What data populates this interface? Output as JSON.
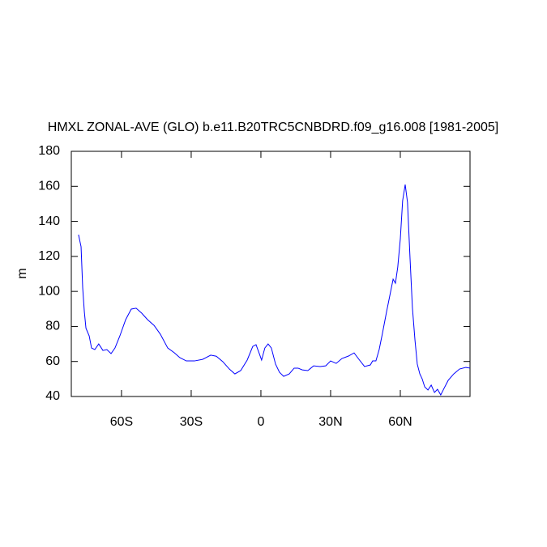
{
  "chart_data": {
    "type": "line",
    "title": "HMXL ZONAL-AVE (GLO) b.e11.B20TRC5CNBDRD.f09_g16.008 [1981-2005]",
    "y_label": "m",
    "x": [
      -78.5,
      -77.4,
      -76.7,
      -76,
      -75.3,
      -73.9,
      -72.9,
      -71.5,
      -69.8,
      -68,
      -66.3,
      -64.5,
      -62.8,
      -60.7,
      -58.2,
      -55.8,
      -53.7,
      -51.3,
      -48.8,
      -46,
      -43.3,
      -40.1,
      -37.3,
      -34.9,
      -32.1,
      -28.6,
      -25.1,
      -21.6,
      -19.2,
      -16.4,
      -13.6,
      -11.2,
      -8.7,
      -5.9,
      -3.5,
      -2.1,
      -0.7,
      0.3,
      1.7,
      3.1,
      4.5,
      6.3,
      8,
      9.8,
      12.2,
      14.3,
      16,
      17.8,
      20.2,
      22.7,
      25.5,
      27.9,
      30,
      32.4,
      34.9,
      37.7,
      40.1,
      42.2,
      44.6,
      47.1,
      48.1,
      49.5,
      50.9,
      52.3,
      54.1,
      55.5,
      56.9,
      57.9,
      58.9,
      60,
      61,
      62.1,
      63.1,
      64.2,
      65.2,
      66.3,
      67.3,
      68.4,
      69.4,
      70.5,
      71.9,
      73.3,
      74.7,
      76,
      77.4,
      78.8,
      80.6,
      83,
      85.5,
      88.2,
      90
    ],
    "series": [
      {
        "color": "#0000ff",
        "values": [
          132.4,
          125.5,
          102,
          88.5,
          79,
          74.6,
          67.7,
          66.8,
          70,
          66.3,
          66.8,
          64.5,
          67.7,
          74.6,
          83.9,
          89.9,
          90.4,
          87.6,
          83.9,
          80.6,
          75.6,
          67.7,
          65,
          62.2,
          60.3,
          60.3,
          61.2,
          63.6,
          63,
          59.9,
          55.7,
          52.9,
          54.8,
          60.8,
          68.6,
          69.6,
          64.5,
          60.8,
          67.7,
          70,
          67.7,
          58.5,
          53.8,
          51.5,
          52.9,
          56.2,
          56.2,
          55.2,
          54.8,
          57.5,
          57.1,
          57.5,
          60.3,
          58.9,
          61.7,
          63.1,
          64.9,
          61.2,
          57.1,
          58,
          60.3,
          60.3,
          66.8,
          76,
          88.5,
          97.7,
          107,
          104.7,
          113.9,
          130,
          151.8,
          161,
          150.8,
          118.5,
          90.8,
          72.3,
          58.5,
          52.9,
          50.1,
          45.5,
          43.7,
          46.5,
          42.3,
          44.1,
          40.9,
          44.6,
          49.2,
          52.9,
          55.7,
          56.6,
          56.2
        ]
      }
    ],
    "xlim": [
      -81.6,
      90
    ],
    "xticks": [
      {
        "value": -60,
        "label": "60S"
      },
      {
        "value": -30,
        "label": "30S"
      },
      0,
      {
        "value": 30,
        "label": "30N"
      },
      {
        "value": 60,
        "label": "60N"
      }
    ],
    "ylim": [
      40,
      180
    ],
    "yticks": [
      40,
      60,
      80,
      100,
      120,
      140,
      160,
      180
    ]
  }
}
